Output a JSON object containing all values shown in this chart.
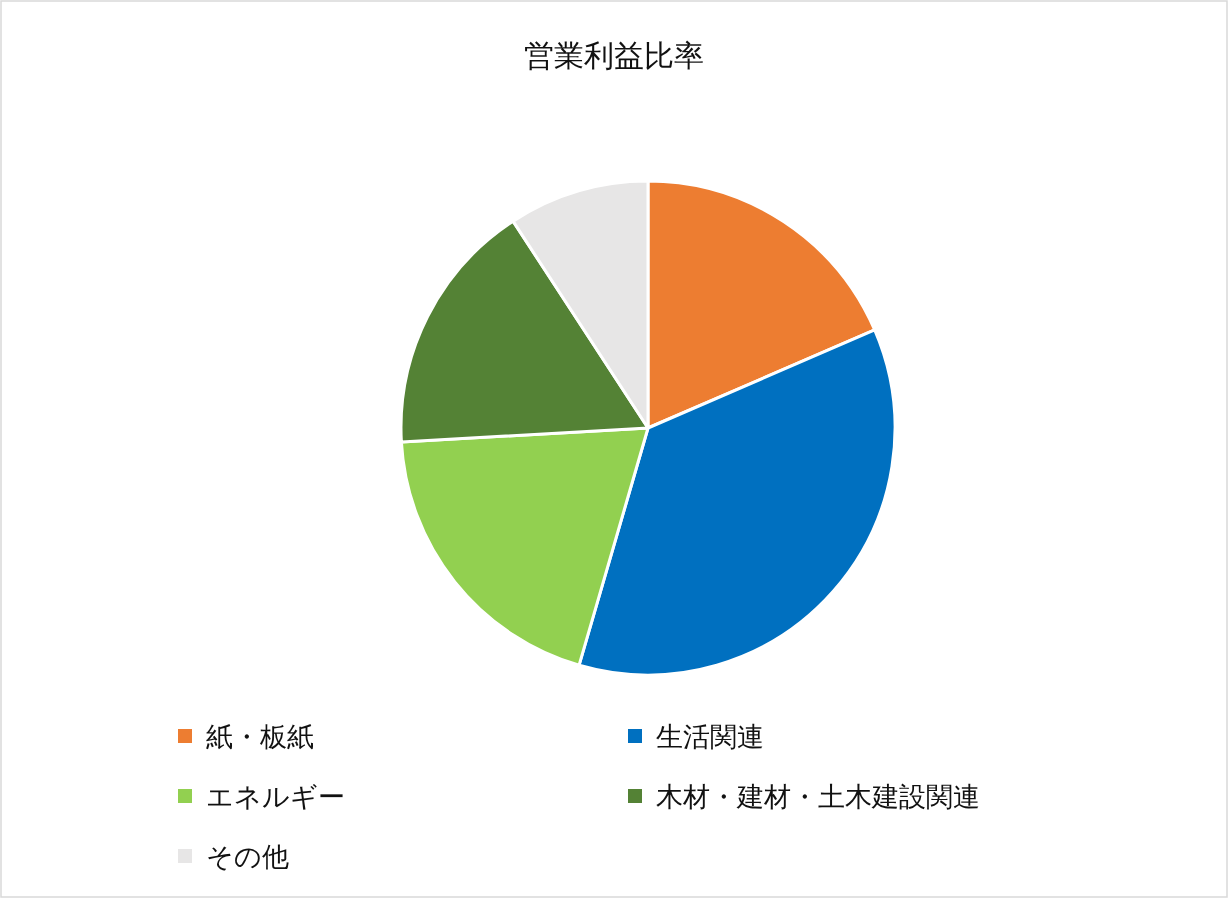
{
  "chart_data": {
    "type": "pie",
    "title": "営業利益比率",
    "categories": [
      "紙・板紙",
      "生活関連",
      "エネルギー",
      "木材・建材・土木建設関連",
      "その他"
    ],
    "values": [
      18.5,
      36.0,
      19.6,
      16.7,
      9.2
    ],
    "colors": [
      "#ed7d31",
      "#0070c0",
      "#92d050",
      "#548235",
      "#e7e6e6"
    ],
    "legend": "bottom"
  }
}
